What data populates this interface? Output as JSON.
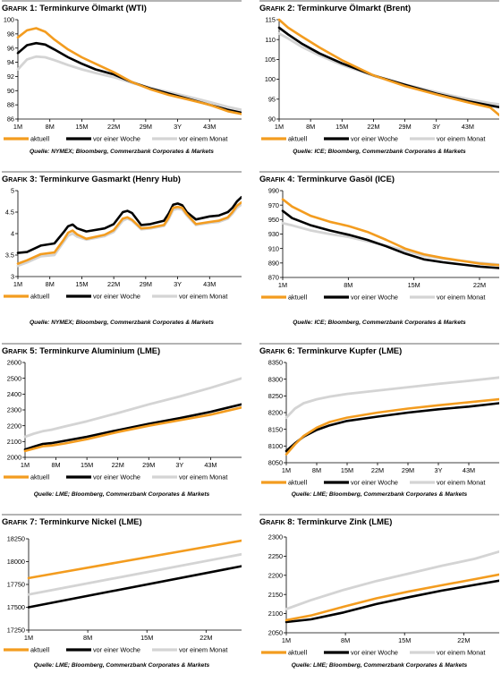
{
  "legend_labels": [
    "aktuell",
    "vor einer Woche",
    "vor einem Monat"
  ],
  "colors": {
    "aktuell": "#f39c1f",
    "vor einer Woche": "#000000",
    "vor einem Monat": "#d4d4d4"
  },
  "charts": [
    {
      "prefix": "Grafik 1:",
      "title": "Terminkurve Ölmarkt (WTI)",
      "source": "Quelle: NYMEX; Bloomberg, Commerzbank Corporates & Markets"
    },
    {
      "prefix": "Grafik 2:",
      "title": "Terminkurve Ölmarkt (Brent)",
      "source": "Quelle: ICE; Bloomberg, Commerzbank Corporates & Markets"
    },
    {
      "prefix": "Grafik 3:",
      "title": "Terminkurve Gasmarkt (Henry Hub)",
      "source": "Quelle: NYMEX; Bloomberg, Commerzbank Corporates & Markets"
    },
    {
      "prefix": "Grafik 4:",
      "title": "Terminkurve Gasöl (ICE)",
      "source": "Quelle: ICE; Bloomberg, Commerzbank Corporates & Markets"
    },
    {
      "prefix": "Grafik 5:",
      "title": " Terminkurve Aluminium (LME)",
      "source": "Quelle: LME; Bloomberg, Commerzbank Corporates & Markets"
    },
    {
      "prefix": "Grafik 6:",
      "title": "Terminkurve Kupfer (LME)",
      "source": "Quelle: LME; Bloomberg, Commerzbank Corporates & Markets"
    },
    {
      "prefix": "Grafik 7:",
      "title": "Terminkurve Nickel (LME)",
      "source": "Quelle: LME; Bloomberg, Commerzbank Corporates & Markets"
    },
    {
      "prefix": "Grafik 8:",
      "title": "Terminkurve Zink (LME)",
      "source": "Quelle: LME; Bloomberg, Commerzbank Corporates & Markets"
    }
  ],
  "chart_data": [
    {
      "type": "line",
      "title": "Terminkurve Ölmarkt (WTI)",
      "x_ticks": [
        "1M",
        "8M",
        "15M",
        "22M",
        "29M",
        "3Y",
        "43M"
      ],
      "x_range": [
        1,
        50
      ],
      "ylim": [
        86,
        100
      ],
      "y_ticks": [
        86,
        88,
        90,
        92,
        94,
        96,
        98,
        100
      ],
      "series": [
        {
          "name": "aktuell",
          "x": [
            1,
            3,
            5,
            7,
            9,
            12,
            15,
            18,
            22,
            26,
            30,
            34,
            38,
            43,
            47,
            50
          ],
          "values": [
            97.5,
            98.5,
            98.8,
            98.3,
            97.2,
            95.8,
            94.7,
            93.8,
            92.6,
            91.2,
            90.2,
            89.4,
            88.8,
            88.0,
            87.1,
            86.7
          ]
        },
        {
          "name": "vor einer Woche",
          "x": [
            1,
            3,
            5,
            7,
            9,
            12,
            15,
            18,
            22,
            26,
            30,
            34,
            38,
            43,
            47,
            50
          ],
          "values": [
            95.3,
            96.4,
            96.7,
            96.5,
            95.8,
            94.7,
            93.8,
            93.0,
            92.3,
            91.2,
            90.3,
            89.6,
            88.9,
            88.0,
            87.3,
            86.9
          ]
        },
        {
          "name": "vor einem Monat",
          "x": [
            1,
            3,
            5,
            7,
            9,
            12,
            15,
            18,
            22,
            26,
            30,
            34,
            38,
            43,
            47,
            50
          ],
          "values": [
            93.0,
            94.4,
            94.8,
            94.7,
            94.3,
            93.6,
            93.0,
            92.5,
            91.9,
            91.1,
            90.4,
            89.8,
            89.2,
            88.4,
            87.7,
            87.3
          ]
        }
      ]
    },
    {
      "type": "line",
      "title": "Terminkurve Ölmarkt (Brent)",
      "x_ticks": [
        "1M",
        "8M",
        "15M",
        "22M",
        "29M",
        "3Y",
        "43M"
      ],
      "x_range": [
        1,
        50
      ],
      "ylim": [
        90,
        115
      ],
      "y_ticks": [
        90,
        95,
        100,
        105,
        110,
        115
      ],
      "series": [
        {
          "name": "aktuell",
          "x": [
            1,
            3,
            6,
            10,
            15,
            22,
            29,
            36,
            43,
            48,
            50
          ],
          "values": [
            115,
            113,
            110.8,
            108,
            104.8,
            101,
            98.3,
            96.2,
            94.2,
            92.9,
            91
          ]
        },
        {
          "name": "vor einer Woche",
          "x": [
            1,
            3,
            6,
            10,
            15,
            22,
            29,
            36,
            43,
            48,
            50
          ],
          "values": [
            113,
            111.3,
            109.0,
            106.5,
            104.0,
            101,
            98.6,
            96.4,
            94.5,
            93.4,
            93
          ]
        },
        {
          "name": "vor einem Monat",
          "x": [
            1,
            3,
            6,
            10,
            15,
            22,
            29,
            36,
            43,
            48,
            50
          ],
          "values": [
            111.5,
            110.3,
            108.2,
            106.0,
            103.6,
            100.9,
            98.7,
            96.8,
            95.0,
            94.0,
            93.7
          ]
        }
      ]
    },
    {
      "type": "line",
      "title": "Terminkurve Gasmarkt (Henry Hub)",
      "x_ticks": [
        "1M",
        "8M",
        "15M",
        "22M",
        "29M",
        "3Y",
        "43M"
      ],
      "x_range": [
        1,
        50
      ],
      "ylim": [
        3.0,
        5.0
      ],
      "y_ticks": [
        3.0,
        3.5,
        4.0,
        4.5,
        5.0
      ],
      "series": [
        {
          "name": "aktuell",
          "x": [
            1,
            3,
            6,
            9,
            11,
            12,
            13,
            14,
            16,
            20,
            22,
            24,
            25,
            26,
            28,
            30,
            33,
            34,
            35,
            36,
            37,
            38,
            40,
            43,
            45,
            47,
            48,
            49,
            50
          ],
          "values": [
            3.3,
            3.38,
            3.52,
            3.56,
            3.85,
            4.02,
            4.07,
            3.98,
            3.88,
            3.97,
            4.08,
            4.35,
            4.38,
            4.32,
            4.12,
            4.14,
            4.2,
            4.37,
            4.6,
            4.62,
            4.6,
            4.45,
            4.22,
            4.27,
            4.3,
            4.38,
            4.5,
            4.65,
            4.73
          ]
        },
        {
          "name": "vor einer Woche",
          "x": [
            1,
            3,
            6,
            9,
            11,
            12,
            13,
            14,
            16,
            20,
            22,
            24,
            25,
            26,
            28,
            30,
            33,
            34,
            35,
            36,
            37,
            38,
            40,
            43,
            45,
            47,
            48,
            49,
            50
          ],
          "values": [
            3.55,
            3.57,
            3.72,
            3.77,
            4.03,
            4.17,
            4.21,
            4.12,
            4.05,
            4.12,
            4.22,
            4.5,
            4.53,
            4.48,
            4.2,
            4.22,
            4.3,
            4.46,
            4.67,
            4.7,
            4.66,
            4.5,
            4.33,
            4.4,
            4.42,
            4.5,
            4.6,
            4.75,
            4.85
          ]
        },
        {
          "name": "vor einem Monat",
          "x": [
            1,
            3,
            6,
            9,
            11,
            12,
            13,
            14,
            16,
            20,
            22,
            24,
            25,
            26,
            28,
            30,
            33,
            34,
            35,
            36,
            37,
            38,
            40,
            43,
            45,
            47,
            48,
            49,
            50
          ],
          "values": [
            3.25,
            3.33,
            3.47,
            3.5,
            3.8,
            3.95,
            4.0,
            3.93,
            3.86,
            3.94,
            4.04,
            4.3,
            4.35,
            4.3,
            4.1,
            4.12,
            4.18,
            4.33,
            4.55,
            4.58,
            4.56,
            4.42,
            4.2,
            4.25,
            4.27,
            4.35,
            4.46,
            4.6,
            4.68
          ]
        }
      ]
    },
    {
      "type": "line",
      "title": "Terminkurve Gasöl (ICE)",
      "x_ticks": [
        "1M",
        "8M",
        "15M",
        "22M"
      ],
      "x_range": [
        1,
        24
      ],
      "ylim": [
        870,
        990
      ],
      "y_ticks": [
        870,
        890,
        910,
        930,
        950,
        970,
        990
      ],
      "series": [
        {
          "name": "aktuell",
          "x": [
            1,
            2,
            4,
            6,
            8,
            10,
            12,
            14,
            16,
            18,
            20,
            22,
            24
          ],
          "values": [
            978,
            968,
            955,
            947,
            941,
            933,
            922,
            910,
            902,
            897,
            893,
            889,
            887
          ]
        },
        {
          "name": "vor einer Woche",
          "x": [
            1,
            2,
            4,
            6,
            8,
            10,
            12,
            14,
            16,
            18,
            20,
            22,
            24
          ],
          "values": [
            962,
            952,
            942,
            935,
            929,
            922,
            913,
            903,
            895,
            891,
            888,
            885,
            883
          ]
        },
        {
          "name": "vor einem Monat",
          "x": [
            1,
            2,
            4,
            6,
            8,
            10,
            12,
            14,
            16,
            18,
            20,
            22,
            24
          ],
          "values": [
            945,
            942,
            935,
            930,
            926,
            920,
            914,
            907,
            900,
            896,
            893,
            890,
            888
          ]
        }
      ]
    },
    {
      "type": "line",
      "title": "Terminkurve Aluminium (LME)",
      "x_ticks": [
        "1M",
        "8M",
        "15M",
        "22M",
        "29M",
        "3Y",
        "43M"
      ],
      "x_range": [
        1,
        50
      ],
      "ylim": [
        2000,
        2600
      ],
      "y_ticks": [
        2000,
        2100,
        2200,
        2300,
        2400,
        2500,
        2600
      ],
      "series": [
        {
          "name": "aktuell",
          "x": [
            1,
            3,
            5,
            7,
            10,
            15,
            22,
            29,
            36,
            43,
            50
          ],
          "values": [
            2040,
            2055,
            2070,
            2075,
            2088,
            2115,
            2160,
            2200,
            2235,
            2270,
            2315
          ]
        },
        {
          "name": "vor einer Woche",
          "x": [
            1,
            3,
            5,
            7,
            10,
            15,
            22,
            29,
            36,
            43,
            50
          ],
          "values": [
            2050,
            2068,
            2085,
            2090,
            2105,
            2130,
            2172,
            2212,
            2248,
            2288,
            2335
          ]
        },
        {
          "name": "vor einem Monat",
          "x": [
            1,
            3,
            5,
            7,
            10,
            15,
            22,
            29,
            36,
            43,
            50
          ],
          "values": [
            2130,
            2150,
            2165,
            2175,
            2195,
            2228,
            2280,
            2335,
            2385,
            2440,
            2500
          ]
        }
      ]
    },
    {
      "type": "line",
      "title": "Terminkurve Kupfer (LME)",
      "x_ticks": [
        "1M",
        "8M",
        "15M",
        "22M",
        "29M",
        "3Y",
        "43M"
      ],
      "x_range": [
        1,
        50
      ],
      "ylim": [
        8050,
        8350
      ],
      "y_ticks": [
        8050,
        8100,
        8150,
        8200,
        8250,
        8300,
        8350
      ],
      "series": [
        {
          "name": "aktuell",
          "x": [
            1,
            3,
            5,
            8,
            11,
            15,
            22,
            29,
            36,
            43,
            50
          ],
          "values": [
            8075,
            8105,
            8130,
            8155,
            8172,
            8185,
            8200,
            8212,
            8222,
            8231,
            8240
          ]
        },
        {
          "name": "vor einer Woche",
          "x": [
            1,
            3,
            5,
            8,
            11,
            15,
            22,
            29,
            36,
            43,
            50
          ],
          "values": [
            8085,
            8108,
            8128,
            8148,
            8162,
            8175,
            8188,
            8200,
            8210,
            8218,
            8228
          ]
        },
        {
          "name": "vor einem Monat",
          "x": [
            1,
            3,
            5,
            8,
            11,
            15,
            22,
            29,
            36,
            43,
            50
          ],
          "values": [
            8185,
            8212,
            8228,
            8240,
            8248,
            8256,
            8266,
            8276,
            8286,
            8295,
            8305
          ]
        }
      ]
    },
    {
      "type": "line",
      "title": "Terminkurve Nickel (LME)",
      "x_ticks": [
        "1M",
        "8M",
        "15M",
        "22M"
      ],
      "x_range": [
        1,
        27
      ],
      "ylim": [
        17250,
        18250
      ],
      "y_ticks": [
        17250,
        17500,
        17750,
        18000,
        18250
      ],
      "series": [
        {
          "name": "aktuell",
          "x": [
            1,
            27
          ],
          "values": [
            17820,
            18230
          ]
        },
        {
          "name": "vor einer Woche",
          "x": [
            1,
            27
          ],
          "values": [
            17500,
            17950
          ]
        },
        {
          "name": "vor einem Monat",
          "x": [
            1,
            27
          ],
          "values": [
            17640,
            18080
          ]
        }
      ]
    },
    {
      "type": "line",
      "title": "Terminkurve Zink (LME)",
      "x_ticks": [
        "1M",
        "8M",
        "15M",
        "22M"
      ],
      "x_range": [
        1,
        27
      ],
      "ylim": [
        2050,
        2300
      ],
      "y_ticks": [
        2050,
        2100,
        2150,
        2200,
        2250,
        2300
      ],
      "series": [
        {
          "name": "aktuell",
          "x": [
            1,
            4,
            8,
            12,
            16,
            20,
            24,
            27
          ],
          "values": [
            2083,
            2095,
            2118,
            2140,
            2158,
            2174,
            2190,
            2202
          ]
        },
        {
          "name": "vor einer Woche",
          "x": [
            1,
            4,
            8,
            12,
            16,
            20,
            24,
            27
          ],
          "values": [
            2078,
            2085,
            2103,
            2125,
            2143,
            2160,
            2175,
            2186
          ]
        },
        {
          "name": "vor einem Monat",
          "x": [
            1,
            4,
            8,
            12,
            16,
            20,
            24,
            27
          ],
          "values": [
            2112,
            2135,
            2162,
            2185,
            2205,
            2225,
            2243,
            2262
          ]
        }
      ]
    }
  ]
}
